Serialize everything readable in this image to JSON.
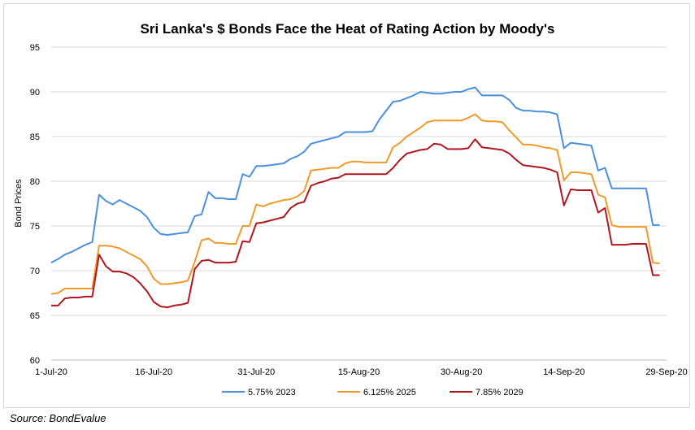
{
  "chart_data": {
    "type": "line",
    "title": "Sri Lanka's $ Bonds Face the Heat of Rating Action by Moody's",
    "xlabel": "",
    "ylabel": "Bond Prices",
    "ylim": [
      60,
      95
    ],
    "yticks": [
      60,
      65,
      70,
      75,
      80,
      85,
      90,
      95
    ],
    "xlim": [
      0,
      90
    ],
    "xticks": [
      {
        "x": 0,
        "label": "1-Jul-20"
      },
      {
        "x": 15,
        "label": "16-Jul-20"
      },
      {
        "x": 30,
        "label": "31-Jul-20"
      },
      {
        "x": 45,
        "label": "15-Aug-20"
      },
      {
        "x": 60,
        "label": "30-Aug-20"
      },
      {
        "x": 75,
        "label": "14-Sep-20"
      },
      {
        "x": 90,
        "label": "29-Sep-20"
      }
    ],
    "grid": "horizontal",
    "legend": "bottom",
    "series": [
      {
        "name": "5.75% 2023",
        "color": "#4a8fe0",
        "points": [
          [
            0,
            70.9
          ],
          [
            1,
            71.3
          ],
          [
            2,
            71.8
          ],
          [
            3,
            72.1
          ],
          [
            4,
            72.5
          ],
          [
            5,
            72.9
          ],
          [
            6,
            73.2
          ],
          [
            7,
            78.5
          ],
          [
            8,
            77.8
          ],
          [
            9,
            77.4
          ],
          [
            10,
            77.9
          ],
          [
            11,
            77.5
          ],
          [
            12,
            77.1
          ],
          [
            13,
            76.7
          ],
          [
            14,
            76.0
          ],
          [
            15,
            74.8
          ],
          [
            16,
            74.1
          ],
          [
            17,
            74.0
          ],
          [
            18,
            74.1
          ],
          [
            19,
            74.2
          ],
          [
            20,
            74.3
          ],
          [
            21,
            76.1
          ],
          [
            22,
            76.3
          ],
          [
            23,
            78.8
          ],
          [
            24,
            78.1
          ],
          [
            25,
            78.1
          ],
          [
            26,
            78.0
          ],
          [
            27,
            78.0
          ],
          [
            28,
            80.8
          ],
          [
            29,
            80.5
          ],
          [
            30,
            81.7
          ],
          [
            31,
            81.7
          ],
          [
            32,
            81.8
          ],
          [
            33,
            81.9
          ],
          [
            34,
            82.0
          ],
          [
            35,
            82.5
          ],
          [
            36,
            82.8
          ],
          [
            37,
            83.3
          ],
          [
            38,
            84.2
          ],
          [
            39,
            84.4
          ],
          [
            40,
            84.6
          ],
          [
            41,
            84.8
          ],
          [
            42,
            85.0
          ],
          [
            43,
            85.5
          ],
          [
            44,
            85.5
          ],
          [
            45,
            85.5
          ],
          [
            46,
            85.5
          ],
          [
            47,
            85.6
          ],
          [
            48,
            86.9
          ],
          [
            49,
            87.9
          ],
          [
            50,
            88.9
          ],
          [
            51,
            89.0
          ],
          [
            52,
            89.3
          ],
          [
            53,
            89.6
          ],
          [
            54,
            90.0
          ],
          [
            55,
            89.9
          ],
          [
            56,
            89.8
          ],
          [
            57,
            89.8
          ],
          [
            58,
            89.9
          ],
          [
            59,
            90.0
          ],
          [
            60,
            90.0
          ],
          [
            61,
            90.3
          ],
          [
            62,
            90.5
          ],
          [
            63,
            89.6
          ],
          [
            64,
            89.6
          ],
          [
            65,
            89.6
          ],
          [
            66,
            89.6
          ],
          [
            67,
            89.1
          ],
          [
            68,
            88.2
          ],
          [
            69,
            87.9
          ],
          [
            70,
            87.9
          ],
          [
            71,
            87.8
          ],
          [
            72,
            87.8
          ],
          [
            73,
            87.7
          ],
          [
            74,
            87.5
          ],
          [
            75,
            83.7
          ],
          [
            76,
            84.3
          ],
          [
            77,
            84.2
          ],
          [
            78,
            84.1
          ],
          [
            79,
            84.0
          ],
          [
            80,
            81.2
          ],
          [
            81,
            81.5
          ],
          [
            82,
            79.2
          ],
          [
            83,
            79.2
          ],
          [
            84,
            79.2
          ],
          [
            85,
            79.2
          ],
          [
            86,
            79.2
          ],
          [
            87,
            79.2
          ],
          [
            88,
            75.1
          ],
          [
            89,
            75.1
          ]
        ]
      },
      {
        "name": "6.125% 2025",
        "color": "#f09a2a",
        "points": [
          [
            0,
            67.4
          ],
          [
            1,
            67.5
          ],
          [
            2,
            68.0
          ],
          [
            3,
            68.0
          ],
          [
            4,
            68.0
          ],
          [
            5,
            68.0
          ],
          [
            6,
            68.0
          ],
          [
            7,
            72.8
          ],
          [
            8,
            72.8
          ],
          [
            9,
            72.7
          ],
          [
            10,
            72.5
          ],
          [
            11,
            72.1
          ],
          [
            12,
            71.7
          ],
          [
            13,
            71.3
          ],
          [
            14,
            70.5
          ],
          [
            15,
            69.1
          ],
          [
            16,
            68.5
          ],
          [
            17,
            68.5
          ],
          [
            18,
            68.6
          ],
          [
            19,
            68.7
          ],
          [
            20,
            68.9
          ],
          [
            21,
            71.0
          ],
          [
            22,
            73.4
          ],
          [
            23,
            73.6
          ],
          [
            24,
            73.1
          ],
          [
            25,
            73.1
          ],
          [
            26,
            73.0
          ],
          [
            27,
            73.0
          ],
          [
            28,
            75.0
          ],
          [
            29,
            75.0
          ],
          [
            30,
            77.4
          ],
          [
            31,
            77.2
          ],
          [
            32,
            77.5
          ],
          [
            33,
            77.7
          ],
          [
            34,
            77.9
          ],
          [
            35,
            78.0
          ],
          [
            36,
            78.3
          ],
          [
            37,
            78.9
          ],
          [
            38,
            81.2
          ],
          [
            39,
            81.3
          ],
          [
            40,
            81.4
          ],
          [
            41,
            81.5
          ],
          [
            42,
            81.5
          ],
          [
            43,
            82.0
          ],
          [
            44,
            82.2
          ],
          [
            45,
            82.2
          ],
          [
            46,
            82.1
          ],
          [
            47,
            82.1
          ],
          [
            48,
            82.1
          ],
          [
            49,
            82.1
          ],
          [
            50,
            83.8
          ],
          [
            51,
            84.3
          ],
          [
            52,
            85.0
          ],
          [
            53,
            85.5
          ],
          [
            54,
            86.0
          ],
          [
            55,
            86.6
          ],
          [
            56,
            86.8
          ],
          [
            57,
            86.8
          ],
          [
            58,
            86.8
          ],
          [
            59,
            86.8
          ],
          [
            60,
            86.8
          ],
          [
            61,
            87.1
          ],
          [
            62,
            87.5
          ],
          [
            63,
            86.8
          ],
          [
            64,
            86.7
          ],
          [
            65,
            86.7
          ],
          [
            66,
            86.6
          ],
          [
            67,
            85.7
          ],
          [
            68,
            84.9
          ],
          [
            69,
            84.1
          ],
          [
            70,
            84.1
          ],
          [
            71,
            84.0
          ],
          [
            72,
            83.8
          ],
          [
            73,
            83.7
          ],
          [
            74,
            83.5
          ],
          [
            75,
            80.1
          ],
          [
            76,
            81.0
          ],
          [
            77,
            81.0
          ],
          [
            78,
            80.9
          ],
          [
            79,
            80.8
          ],
          [
            80,
            78.5
          ],
          [
            81,
            78.2
          ],
          [
            82,
            75.1
          ],
          [
            83,
            74.9
          ],
          [
            84,
            74.9
          ],
          [
            85,
            74.9
          ],
          [
            86,
            74.9
          ],
          [
            87,
            74.9
          ],
          [
            88,
            70.9
          ],
          [
            89,
            70.8
          ]
        ]
      },
      {
        "name": "7.85% 2029",
        "color": "#b0161e",
        "points": [
          [
            0,
            66.1
          ],
          [
            1,
            66.1
          ],
          [
            2,
            66.9
          ],
          [
            3,
            67.0
          ],
          [
            4,
            67.0
          ],
          [
            5,
            67.1
          ],
          [
            6,
            67.1
          ],
          [
            7,
            71.8
          ],
          [
            8,
            70.5
          ],
          [
            9,
            69.9
          ],
          [
            10,
            69.9
          ],
          [
            11,
            69.7
          ],
          [
            12,
            69.3
          ],
          [
            13,
            68.6
          ],
          [
            14,
            67.7
          ],
          [
            15,
            66.5
          ],
          [
            16,
            66.0
          ],
          [
            17,
            65.9
          ],
          [
            18,
            66.1
          ],
          [
            19,
            66.2
          ],
          [
            20,
            66.4
          ],
          [
            21,
            70.2
          ],
          [
            22,
            71.1
          ],
          [
            23,
            71.2
          ],
          [
            24,
            70.9
          ],
          [
            25,
            70.9
          ],
          [
            26,
            70.9
          ],
          [
            27,
            71.0
          ],
          [
            28,
            73.3
          ],
          [
            29,
            73.2
          ],
          [
            30,
            75.3
          ],
          [
            31,
            75.4
          ],
          [
            32,
            75.6
          ],
          [
            33,
            75.8
          ],
          [
            34,
            76.0
          ],
          [
            35,
            77.0
          ],
          [
            36,
            77.5
          ],
          [
            37,
            77.7
          ],
          [
            38,
            79.5
          ],
          [
            39,
            79.8
          ],
          [
            40,
            80.0
          ],
          [
            41,
            80.3
          ],
          [
            42,
            80.4
          ],
          [
            43,
            80.8
          ],
          [
            44,
            80.8
          ],
          [
            45,
            80.8
          ],
          [
            46,
            80.8
          ],
          [
            47,
            80.8
          ],
          [
            48,
            80.8
          ],
          [
            49,
            80.8
          ],
          [
            50,
            81.5
          ],
          [
            51,
            82.4
          ],
          [
            52,
            83.1
          ],
          [
            53,
            83.3
          ],
          [
            54,
            83.5
          ],
          [
            55,
            83.6
          ],
          [
            56,
            84.2
          ],
          [
            57,
            84.1
          ],
          [
            58,
            83.6
          ],
          [
            59,
            83.6
          ],
          [
            60,
            83.6
          ],
          [
            61,
            83.7
          ],
          [
            62,
            84.7
          ],
          [
            63,
            83.8
          ],
          [
            64,
            83.7
          ],
          [
            65,
            83.6
          ],
          [
            66,
            83.5
          ],
          [
            67,
            83.1
          ],
          [
            68,
            82.4
          ],
          [
            69,
            81.8
          ],
          [
            70,
            81.7
          ],
          [
            71,
            81.6
          ],
          [
            72,
            81.5
          ],
          [
            73,
            81.3
          ],
          [
            74,
            81.0
          ],
          [
            75,
            77.3
          ],
          [
            76,
            79.1
          ],
          [
            77,
            79.0
          ],
          [
            78,
            79.0
          ],
          [
            79,
            79.0
          ],
          [
            80,
            76.5
          ],
          [
            81,
            77.0
          ],
          [
            82,
            72.9
          ],
          [
            83,
            72.9
          ],
          [
            84,
            72.9
          ],
          [
            85,
            73.0
          ],
          [
            86,
            73.0
          ],
          [
            87,
            73.0
          ],
          [
            88,
            69.5
          ],
          [
            89,
            69.5
          ]
        ]
      }
    ]
  },
  "source": "Source: BondEvalue"
}
